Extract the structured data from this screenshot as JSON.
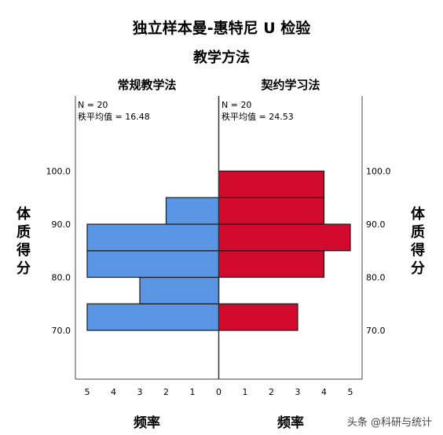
{
  "chart_data": {
    "type": "bar",
    "title": "独立样本曼-惠特尼 U 检验",
    "subtitle": "教学方法",
    "ylabel": "体质得分",
    "xlabel": "频率",
    "y_ticks": [
      "70.0",
      "80.0",
      "90.0",
      "100.0"
    ],
    "x_ticks": [
      "5",
      "4",
      "3",
      "2",
      "1",
      "0",
      "1",
      "2",
      "3",
      "4",
      "5"
    ],
    "xlim": [
      0,
      5
    ],
    "ylim": [
      60,
      110
    ],
    "bin_width": 5,
    "bin_centers": [
      72.5,
      77.5,
      82.5,
      87.5,
      92.5,
      97.5
    ],
    "series": [
      {
        "name": "常规教学法",
        "side": "left",
        "color": "#5a96e3",
        "n_label": "N = 20",
        "mean_label": "秩平均值 = 16.48",
        "counts": [
          5,
          3,
          5,
          5,
          2,
          0
        ]
      },
      {
        "name": "契约学习法",
        "side": "right",
        "color": "#d20a2e",
        "n_label": "N = 20",
        "mean_label": "秩平均值 = 24.53",
        "counts": [
          3,
          0,
          4,
          5,
          4,
          4
        ]
      }
    ]
  },
  "watermark": "头条 @科研与统计"
}
